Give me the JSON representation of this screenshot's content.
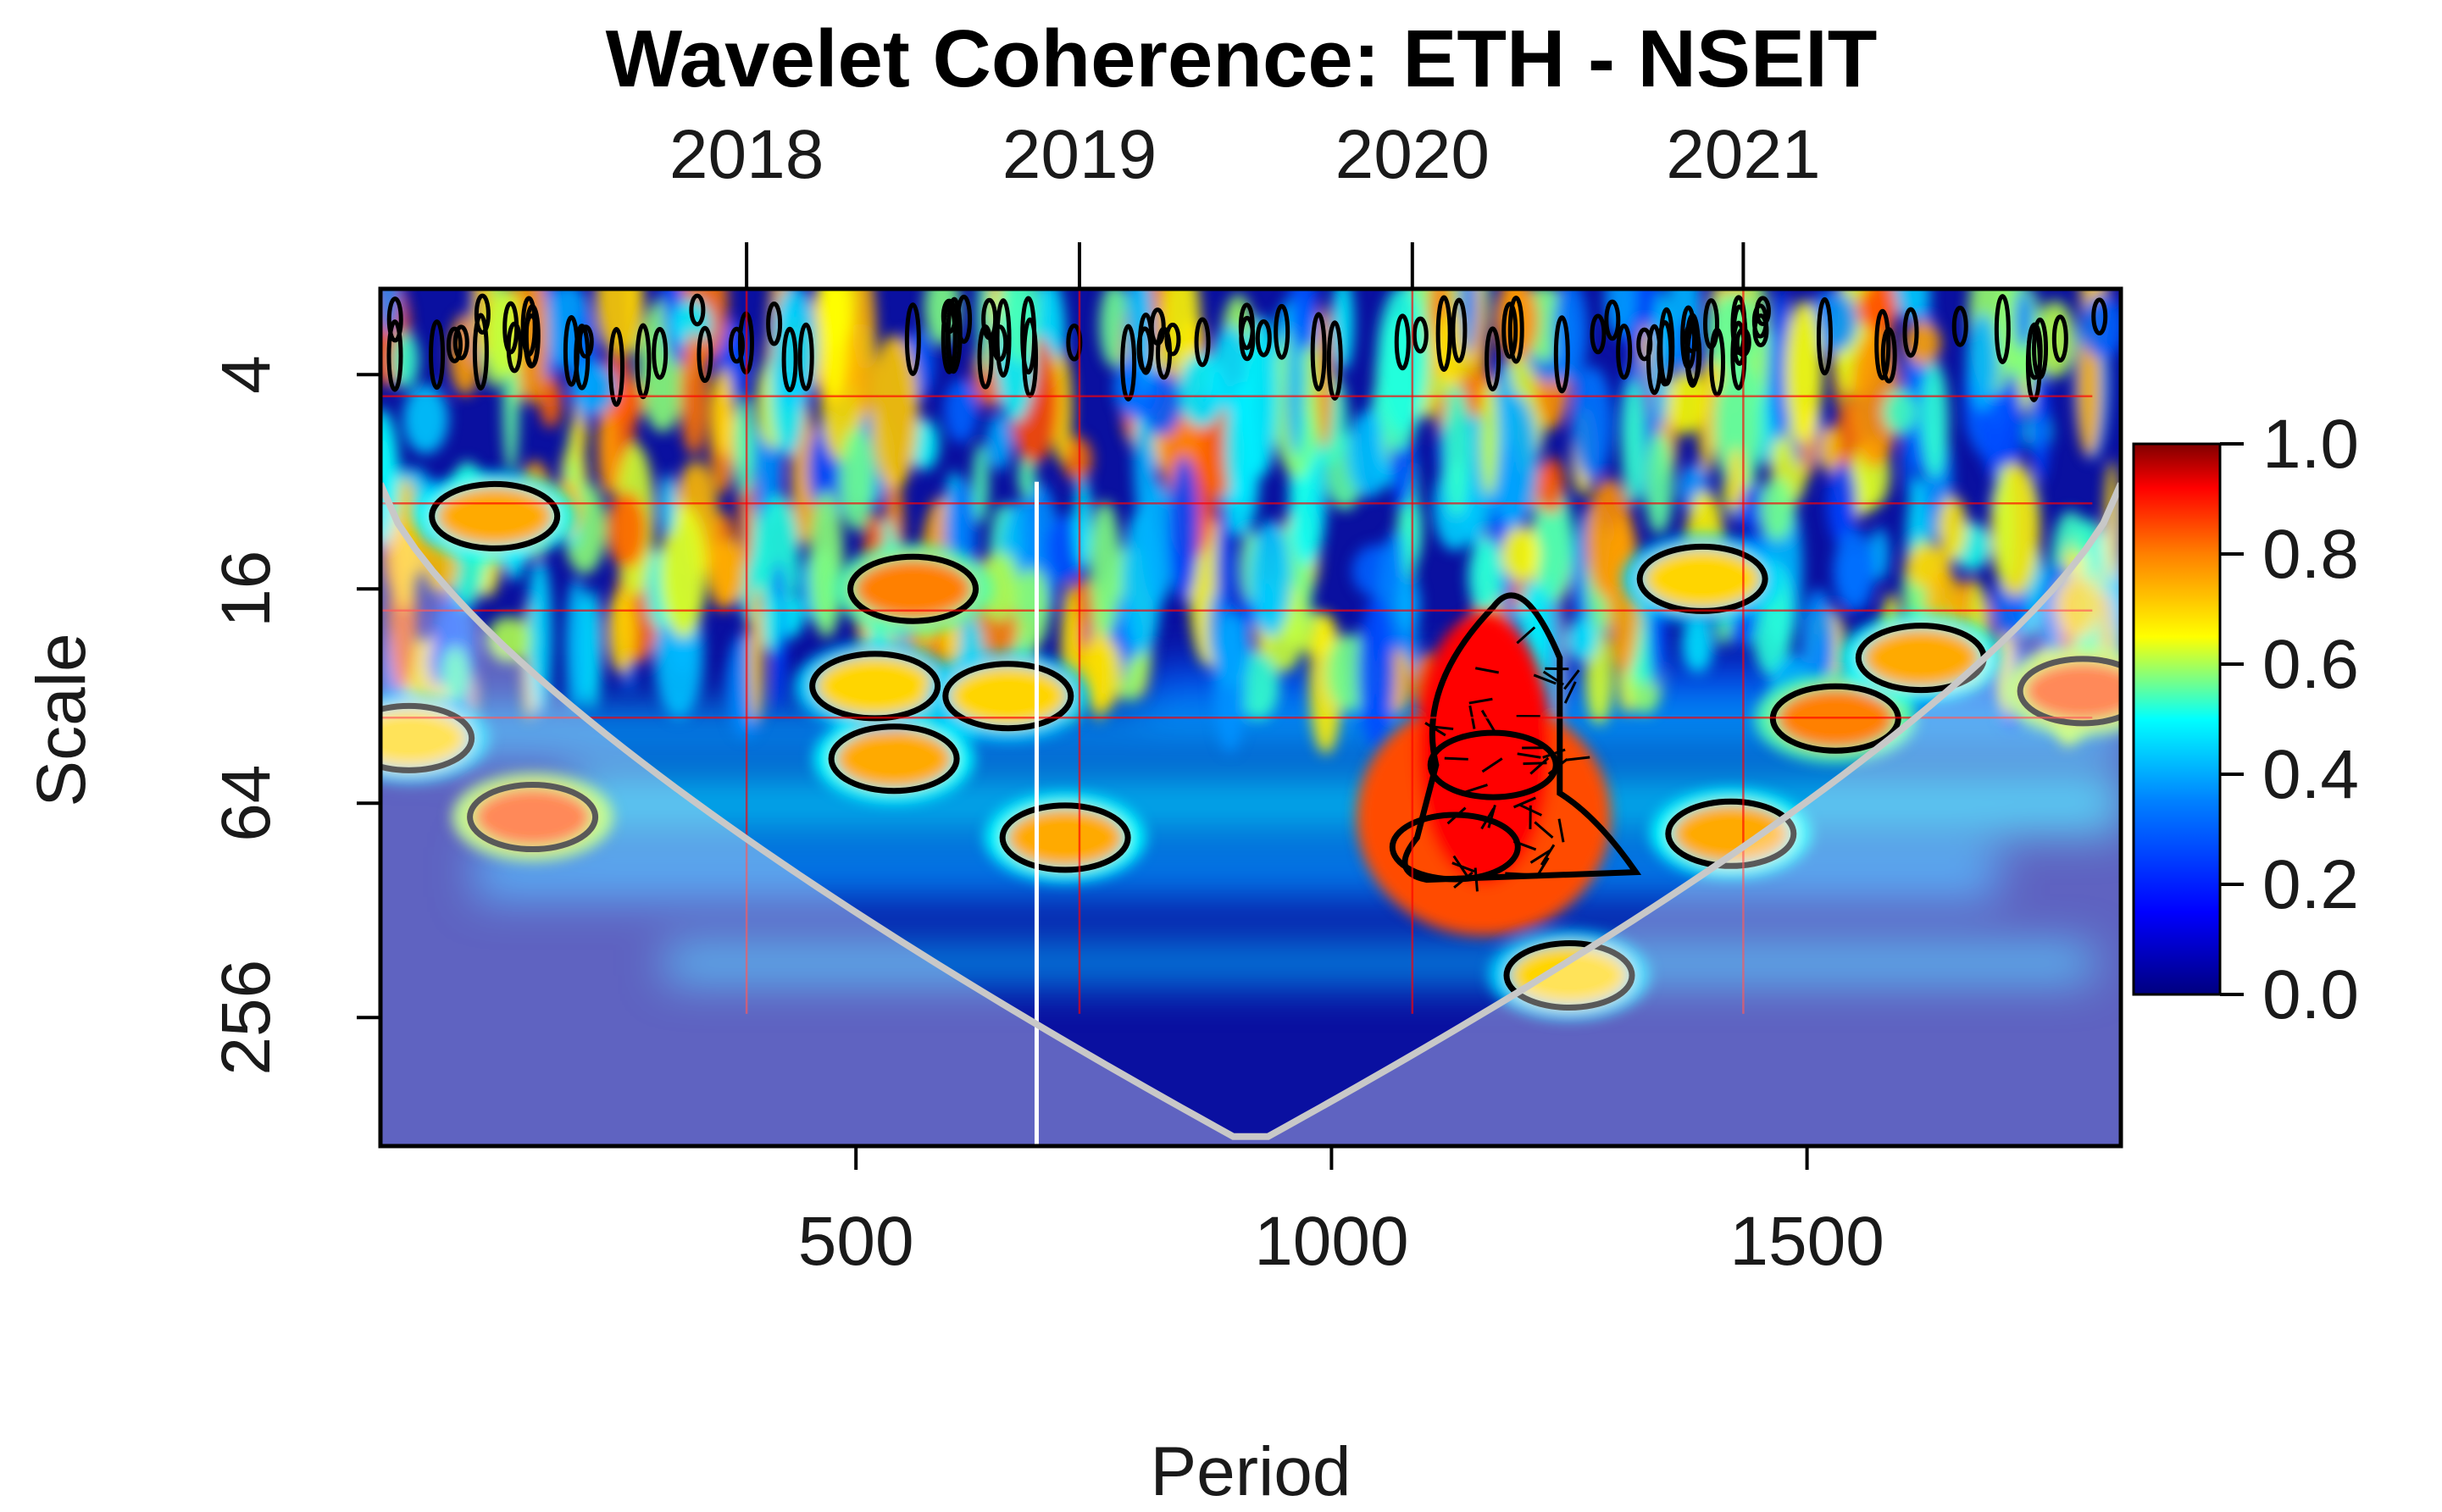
{
  "chart_data": {
    "type": "heatmap",
    "title": "Wavelet Coherence: ETH - NSEIT",
    "xlabel": "Period",
    "ylabel": "Scale",
    "x_ticks": [
      500,
      1000,
      1500
    ],
    "x_tick_labels": [
      "500",
      "1000",
      "1500"
    ],
    "xlim": [
      0,
      1830
    ],
    "top_axis": {
      "ticks": [
        385,
        735,
        1085,
        1433
      ],
      "labels": [
        "2018",
        "2019",
        "2020",
        "2021"
      ]
    },
    "y_ticks": [
      4,
      16,
      64,
      256
    ],
    "y_tick_labels": [
      "4",
      "16",
      "64",
      "256"
    ],
    "ylim_log2": [
      1.2,
      9.2
    ],
    "colorbar": {
      "ticks": [
        0.0,
        0.2,
        0.4,
        0.6,
        0.8,
        1.0
      ],
      "labels": [
        "0.0",
        "0.2",
        "0.4",
        "0.6",
        "0.8",
        "1.0"
      ],
      "range": [
        0,
        1
      ]
    },
    "colors": {
      "low": "#00007f",
      "mid_low": "#0080ff",
      "mid": "#00ffff",
      "mid_high": "#ffff00",
      "high": "#ff0000",
      "max": "#800000",
      "cone": "#c8c8c8",
      "reference_line": "#ff0000",
      "vertical_marker": "#ffffff"
    },
    "high_coherence_regions": [
      {
        "period_center": 1170,
        "scale_center": 50,
        "coherence": 0.9
      },
      {
        "period_center": 1130,
        "scale_center": 85,
        "coherence": 0.85
      },
      {
        "period_center": 1250,
        "scale_center": 195,
        "coherence": 0.7
      },
      {
        "period_center": 720,
        "scale_center": 80,
        "coherence": 0.75
      },
      {
        "period_center": 1420,
        "scale_center": 78,
        "coherence": 0.75
      },
      {
        "period_center": 540,
        "scale_center": 48,
        "coherence": 0.75
      },
      {
        "period_center": 560,
        "scale_center": 16,
        "coherence": 0.8
      },
      {
        "period_center": 520,
        "scale_center": 30,
        "coherence": 0.7
      },
      {
        "period_center": 1530,
        "scale_center": 37,
        "coherence": 0.8
      },
      {
        "period_center": 1620,
        "scale_center": 25,
        "coherence": 0.75
      },
      {
        "period_center": 1790,
        "scale_center": 31,
        "coherence": 0.85
      },
      {
        "period_center": 160,
        "scale_center": 70,
        "coherence": 0.85
      },
      {
        "period_center": 30,
        "scale_center": 42,
        "coherence": 0.7
      },
      {
        "period_center": 120,
        "scale_center": 10,
        "coherence": 0.75
      },
      {
        "period_center": 660,
        "scale_center": 32,
        "coherence": 0.7
      },
      {
        "period_center": 1390,
        "scale_center": 15,
        "coherence": 0.7
      }
    ]
  }
}
